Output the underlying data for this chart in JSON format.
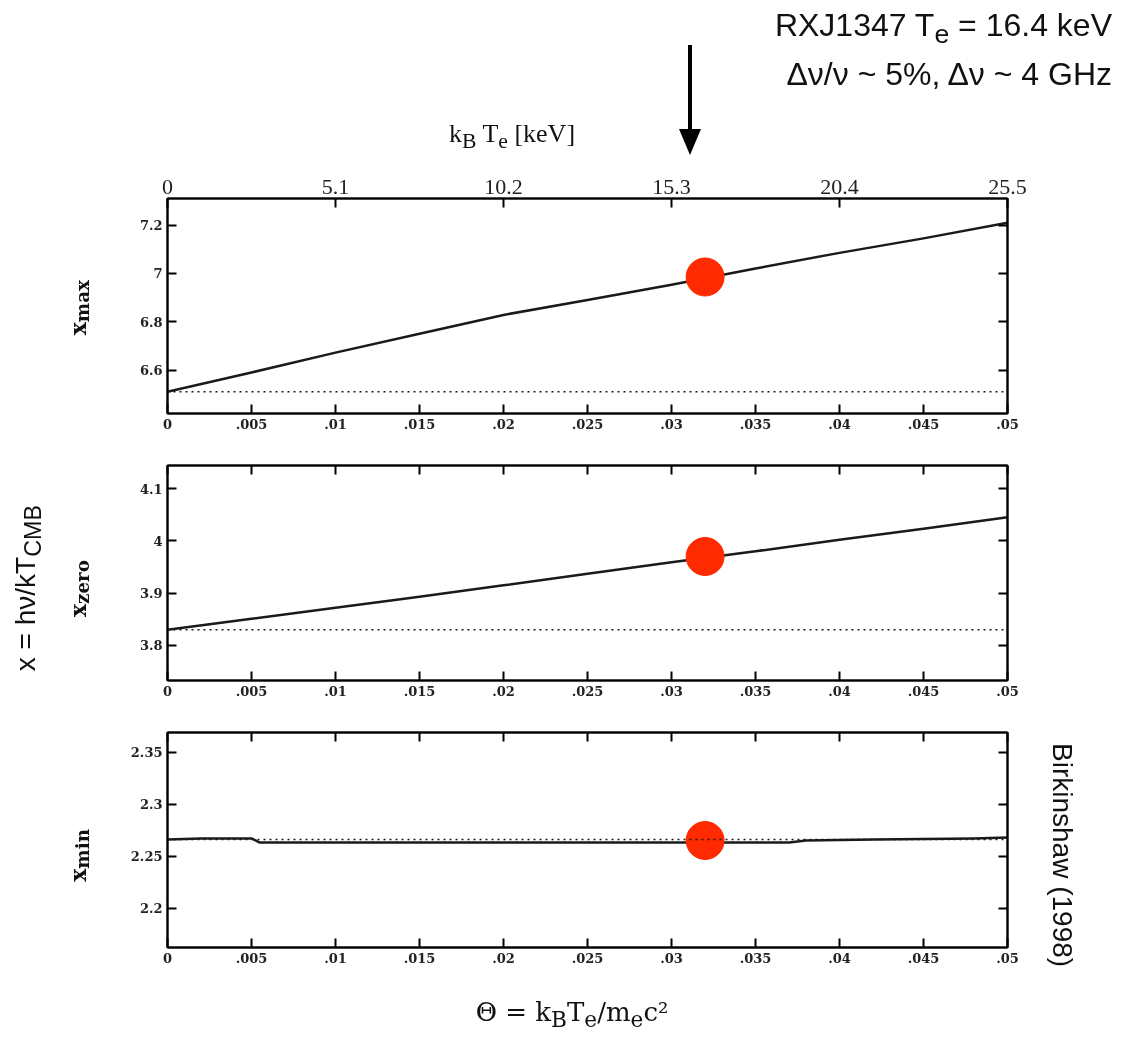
{
  "chart_data": [
    {
      "type": "line",
      "title": "RXJ1347  T$_{e}$ = 16.4 keV",
      "subtitle": "Δν/ν ~ 5%, Δν ~ 4 GHz",
      "x2label": "k$_{B}$ T$_{e}$ [keV]",
      "ylabel": "x$_{max}$",
      "series": [
        {
          "type": "line",
          "color": "#1a1a1a",
          "line_style": "solid",
          "marker": "none",
          "x": [
            0,
            0.005,
            0.01,
            0.015,
            0.02,
            0.025,
            0.03,
            0.035,
            0.04,
            0.045,
            0.05
          ],
          "values": [
            6.51,
            6.59,
            6.672,
            6.75,
            6.828,
            6.89,
            6.953,
            7.02,
            7.085,
            7.145,
            7.21
          ]
        },
        {
          "type": "scatter",
          "color": "#ff2a00",
          "marker": "circle",
          "x": [
            0.032
          ],
          "values": [
            6.985
          ]
        }
      ],
      "ref_lines": [
        {
          "axis": "y",
          "value": 6.51,
          "line_style": "dotted",
          "color": "#1a1a1a"
        }
      ],
      "xlim": [
        0,
        0.05
      ],
      "ylim": [
        6.42,
        7.31
      ],
      "xticks": [
        {
          "value": 0,
          "label": "0"
        },
        {
          "value": 0.005,
          "label": ".005"
        },
        {
          "value": 0.01,
          "label": ".01"
        },
        {
          "value": 0.015,
          "label": ".015"
        },
        {
          "value": 0.02,
          "label": ".02"
        },
        {
          "value": 0.025,
          "label": ".025"
        },
        {
          "value": 0.03,
          "label": ".03"
        },
        {
          "value": 0.035,
          "label": ".035"
        },
        {
          "value": 0.04,
          "label": ".04"
        },
        {
          "value": 0.045,
          "label": ".045"
        },
        {
          "value": 0.05,
          "label": ".05"
        }
      ],
      "yticks": [
        6.6,
        6.8,
        7,
        7.2
      ],
      "x2lim": [
        0,
        25.5
      ],
      "x2ticks": [
        0,
        5.1,
        10.2,
        15.3,
        20.4,
        25.5
      ]
    },
    {
      "type": "line",
      "ylabel": "x$_{zero}$",
      "annotations": [
        "x = hν/kT$_{CMB}$"
      ],
      "series": [
        {
          "type": "line",
          "color": "#1a1a1a",
          "line_style": "solid",
          "marker": "none",
          "x": [
            0,
            0.005,
            0.01,
            0.015,
            0.02,
            0.025,
            0.03,
            0.035,
            0.04,
            0.045,
            0.05
          ],
          "values": [
            3.83,
            3.851,
            3.872,
            3.893,
            3.915,
            3.937,
            3.959,
            3.98,
            4.002,
            4.023,
            4.045
          ]
        },
        {
          "type": "scatter",
          "color": "#ff2a00",
          "marker": "circle",
          "x": [
            0.032
          ],
          "values": [
            3.97
          ]
        }
      ],
      "ref_lines": [
        {
          "axis": "y",
          "value": 3.83,
          "line_style": "dotted",
          "color": "#1a1a1a"
        }
      ],
      "xlim": [
        0,
        0.05
      ],
      "ylim": [
        3.733,
        4.144
      ],
      "xticks": [
        {
          "value": 0,
          "label": "0"
        },
        {
          "value": 0.005,
          "label": ".005"
        },
        {
          "value": 0.01,
          "label": ".01"
        },
        {
          "value": 0.015,
          "label": ".015"
        },
        {
          "value": 0.02,
          "label": ".02"
        },
        {
          "value": 0.025,
          "label": ".025"
        },
        {
          "value": 0.03,
          "label": ".03"
        },
        {
          "value": 0.035,
          "label": ".035"
        },
        {
          "value": 0.04,
          "label": ".04"
        },
        {
          "value": 0.045,
          "label": ".045"
        },
        {
          "value": 0.05,
          "label": ".05"
        }
      ],
      "yticks": [
        3.8,
        3.9,
        4,
        4.1
      ]
    },
    {
      "type": "line",
      "ylabel": "x$_{min}$",
      "xlabel": "Θ = k$_{B}$T$_{e}$/m$_{e}$c²",
      "annotations": [
        "Birkinshaw (1998)"
      ],
      "series": [
        {
          "type": "line",
          "color": "#1a1a1a",
          "line_style": "solid",
          "marker": "none",
          "x": [
            0,
            0.002,
            0.005,
            0.0055,
            0.01,
            0.022,
            0.037,
            0.038,
            0.042,
            0.048,
            0.05
          ],
          "values": [
            2.266,
            2.267,
            2.267,
            2.263,
            2.263,
            2.263,
            2.263,
            2.265,
            2.266,
            2.267,
            2.268
          ]
        },
        {
          "type": "scatter",
          "color": "#ff2a00",
          "marker": "circle",
          "x": [
            0.032
          ],
          "values": [
            2.265
          ]
        }
      ],
      "ref_lines": [
        {
          "axis": "y",
          "value": 2.266,
          "line_style": "dotted",
          "color": "#1a1a1a"
        }
      ],
      "xlim": [
        0,
        0.05
      ],
      "ylim": [
        2.162,
        2.369
      ],
      "xticks": [
        {
          "value": 0,
          "label": "0"
        },
        {
          "value": 0.005,
          "label": ".005"
        },
        {
          "value": 0.01,
          "label": ".01"
        },
        {
          "value": 0.015,
          "label": ".015"
        },
        {
          "value": 0.02,
          "label": ".02"
        },
        {
          "value": 0.025,
          "label": ".025"
        },
        {
          "value": 0.03,
          "label": ".03"
        },
        {
          "value": 0.035,
          "label": ".035"
        },
        {
          "value": 0.04,
          "label": ".04"
        },
        {
          "value": 0.045,
          "label": ".045"
        },
        {
          "value": 0.05,
          "label": ".05"
        }
      ],
      "yticks": [
        2.2,
        2.25,
        2.3,
        2.35
      ]
    }
  ]
}
